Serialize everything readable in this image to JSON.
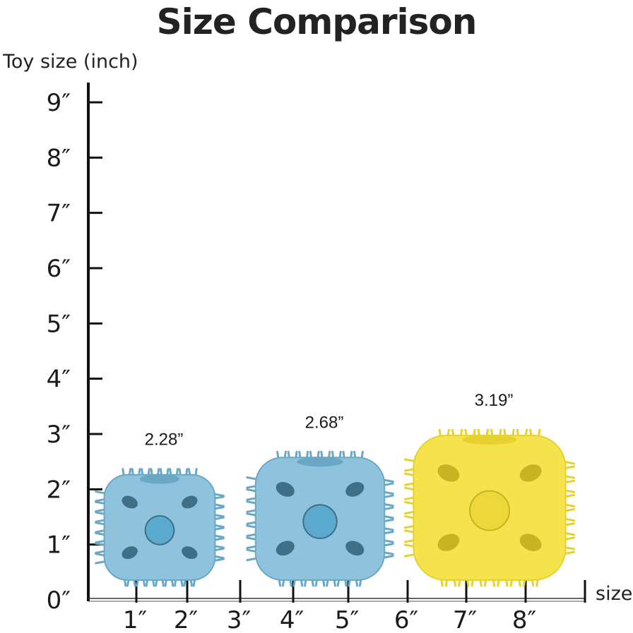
{
  "chart_data": {
    "type": "bar",
    "title": "Size Comparison",
    "ylabel": "Toy size (inch)",
    "xlabel": "size",
    "ylim": [
      0,
      9
    ],
    "xlim": [
      0,
      8.4
    ],
    "y_ticks": [
      "0″",
      "1″",
      "2″",
      "3″",
      "4″",
      "5″",
      "6″",
      "7″",
      "8″",
      "9″"
    ],
    "x_ticks": [
      "1″",
      "2″",
      "3″",
      "4″",
      "5″",
      "6″",
      "7″",
      "8″"
    ],
    "grid": false,
    "series": [
      {
        "values": [
          2.28,
          2.68,
          3.19
        ],
        "labels": [
          "2.28”",
          "2.68”",
          "3.19”"
        ],
        "colors": [
          "#8fc3dd",
          "#8fc3dd",
          "#f4e34c"
        ],
        "x_center": [
          1.3,
          4.0,
          6.9
        ]
      }
    ],
    "mark_style": "spiky-cube-toy"
  }
}
